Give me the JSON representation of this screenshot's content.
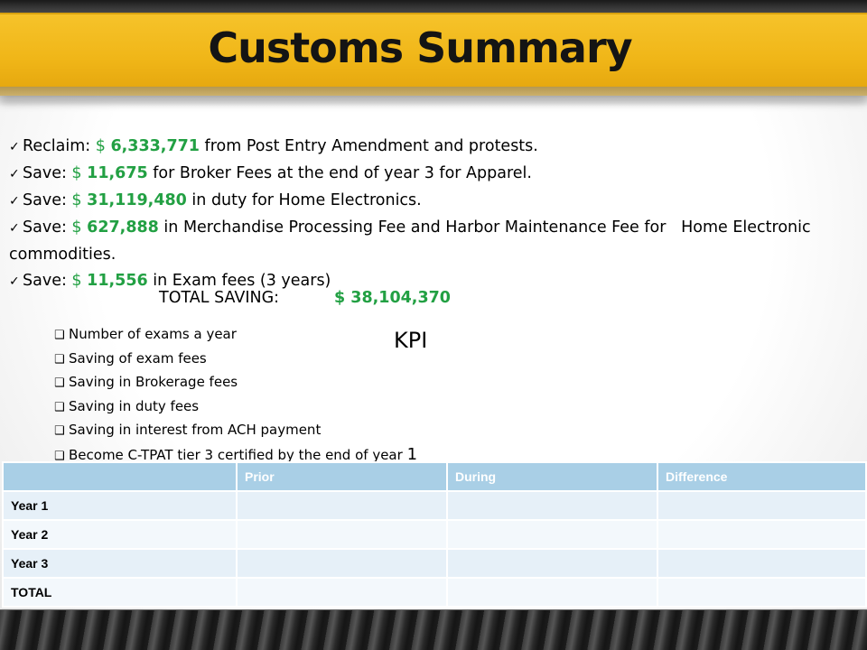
{
  "title": "Customs Summary",
  "bullets": [
    {
      "pre": "Reclaim: ",
      "currency": "$",
      "amount": "6,333,771",
      "post": " from Post Entry Amendment and protests."
    },
    {
      "pre": "Save: ",
      "currency": "$",
      "amount": "11,675",
      "post": " for Broker Fees at the end of year 3 for Apparel."
    },
    {
      "pre": "Save: ",
      "currency": "$",
      "amount": "31,119,480",
      "post": " in duty for Home Electronics."
    },
    {
      "pre": "Save: ",
      "currency": "$",
      "amount": "627,888",
      "post": " in Merchandise Processing Fee and Harbor Maintenance Fee for   Home Electronic commodities."
    },
    {
      "pre": "Save: ",
      "currency": "$",
      "amount": "11,556",
      "post": " in Exam fees (3 years)"
    }
  ],
  "total": {
    "label": "TOTAL SAVING:",
    "value": "$ 38,104,370"
  },
  "kpi": {
    "title": "KPI",
    "items": [
      "Number of exams a year",
      "Saving of exam fees",
      "Saving in Brokerage fees",
      "Saving in duty fees",
      "Saving in interest from ACH payment"
    ],
    "last_item": {
      "text": "Become C-TPAT tier 3 certified by the end of year ",
      "emphasis": "1"
    }
  },
  "table": {
    "headers": [
      "",
      "Prior",
      "During",
      "Difference"
    ],
    "rows": [
      "Year 1",
      "Year 2",
      "Year 3",
      "TOTAL"
    ]
  },
  "colors": {
    "banner": "#f0b618",
    "money": "#22a043",
    "table_header": "#a9cfe6"
  }
}
